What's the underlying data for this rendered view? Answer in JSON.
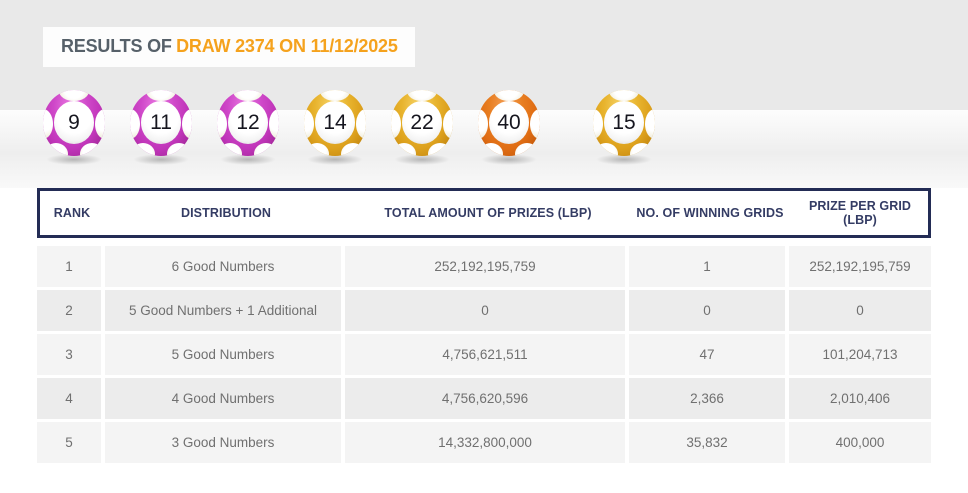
{
  "title": {
    "prefix": "RESULTS OF",
    "highlight": "DRAW 2374 ON 11/12/2025"
  },
  "balls": [
    {
      "number": "9",
      "color": "magenta",
      "type": "main"
    },
    {
      "number": "11",
      "color": "magenta",
      "type": "main"
    },
    {
      "number": "12",
      "color": "magenta",
      "type": "main"
    },
    {
      "number": "14",
      "color": "yellow",
      "type": "main"
    },
    {
      "number": "22",
      "color": "yellow",
      "type": "main"
    },
    {
      "number": "40",
      "color": "orange",
      "type": "main"
    },
    {
      "number": "15",
      "color": "yellow",
      "type": "additional"
    }
  ],
  "table": {
    "headers": [
      "RANK",
      "DISTRIBUTION",
      "TOTAL AMOUNT OF PRIZES (LBP)",
      "NO. OF WINNING GRIDS",
      "PRIZE PER GRID (LBP)"
    ],
    "rows": [
      {
        "rank": "1",
        "distribution": "6 Good Numbers",
        "total": "252,192,195,759",
        "grids": "1",
        "prize": "252,192,195,759"
      },
      {
        "rank": "2",
        "distribution": "5 Good Numbers + 1 Additional",
        "total": "0",
        "grids": "0",
        "prize": "0"
      },
      {
        "rank": "3",
        "distribution": "5 Good Numbers",
        "total": "4,756,621,511",
        "grids": "47",
        "prize": "101,204,713"
      },
      {
        "rank": "4",
        "distribution": "4 Good Numbers",
        "total": "4,756,620,596",
        "grids": "2,366",
        "prize": "2,010,406"
      },
      {
        "rank": "5",
        "distribution": "3 Good Numbers",
        "total": "14,332,800,000",
        "grids": "35,832",
        "prize": "400,000"
      }
    ]
  },
  "colors": {
    "accent_orange": "#f5a21d",
    "title_slate": "#566069",
    "navy_border": "#232c55",
    "header_text": "#343c64",
    "ball_magenta": "#c73fc2",
    "ball_yellow": "#e3ac25",
    "ball_orange": "#e5781c",
    "row_light": "#f4f4f4",
    "row_dark": "#ececec",
    "band_gray": "#e9e9e9"
  }
}
